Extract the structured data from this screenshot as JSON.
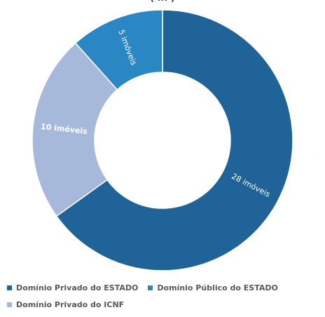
{
  "header_text": "( ... )",
  "colors": {
    "privado_estado": "#1f6399",
    "publico_estado": "#2b86c4",
    "privado_icnf": "#a6b9db"
  },
  "chart_data": {
    "type": "pie",
    "donut": true,
    "categories": [
      "Domínio Privado do ESTADO",
      "Domínio Público do ESTADO",
      "Domínio Privado do ICNF"
    ],
    "values": [
      28,
      5,
      10
    ],
    "data_labels": [
      "28 imóveis",
      "5 imóveis",
      "10 imóveis"
    ],
    "colors": [
      "#1f6399",
      "#2b86c4",
      "#a6b9db"
    ],
    "start_angle_deg": 0,
    "legend_position": "bottom"
  },
  "legend": {
    "items": [
      {
        "label": "Domínio Privado do ESTADO",
        "color": "#1f6399"
      },
      {
        "label": "Domínio Público do ESTADO",
        "color": "#2b86c4"
      },
      {
        "label": "Domínio Privado do ICNF",
        "color": "#a6b9db"
      }
    ]
  }
}
